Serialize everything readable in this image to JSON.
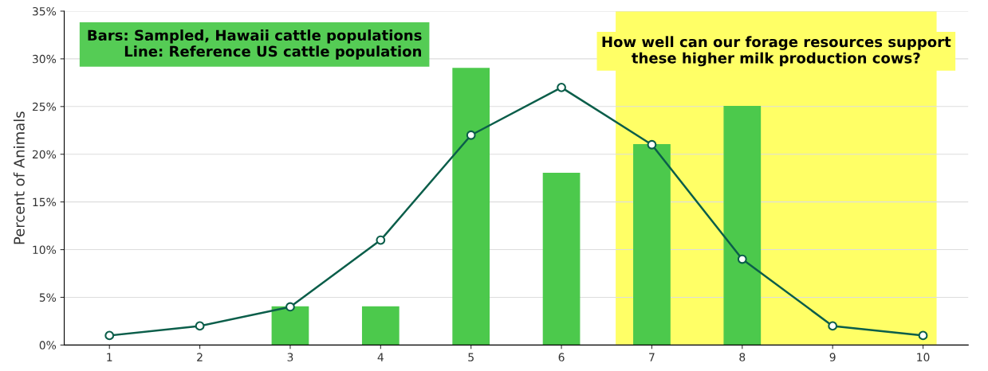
{
  "chart_data": {
    "type": "bar",
    "ylabel": "Percent of Animals",
    "x": [
      1,
      2,
      3,
      4,
      5,
      6,
      7,
      8,
      9,
      10
    ],
    "xlim": [
      0.5,
      10.5
    ],
    "xticks": [
      1,
      2,
      3,
      4,
      5,
      6,
      7,
      8,
      9,
      10
    ],
    "ylim": [
      0,
      35
    ],
    "yticks": [
      {
        "value": 0,
        "label": "0%"
      },
      {
        "value": 5,
        "label": "5%"
      },
      {
        "value": 10,
        "label": "10%"
      },
      {
        "value": 15,
        "label": "15%"
      },
      {
        "value": 20,
        "label": "20%"
      },
      {
        "value": 25,
        "label": "25%"
      },
      {
        "value": 30,
        "label": "30%"
      },
      {
        "value": 35,
        "label": "35%"
      }
    ],
    "grid": "y",
    "series": [
      {
        "color": "#4cc94c",
        "values": [
          null,
          null,
          4,
          4,
          29,
          18,
          21,
          25,
          null,
          null
        ]
      },
      {
        "type": "line",
        "color": "#0b5e4a",
        "marker": "circle",
        "values": [
          1,
          2,
          4,
          11,
          22,
          27,
          21,
          9,
          2,
          1
        ]
      }
    ],
    "bands": [
      {
        "axis": "x",
        "from": 6.6,
        "to": 10.15,
        "color": "#ffff66",
        "label": "How well can our forage resources support\nthese higher milk production cows?"
      }
    ],
    "annotations": [
      "Bars: Sampled, Hawaii cattle populations\nLine: Reference US cattle population"
    ]
  }
}
